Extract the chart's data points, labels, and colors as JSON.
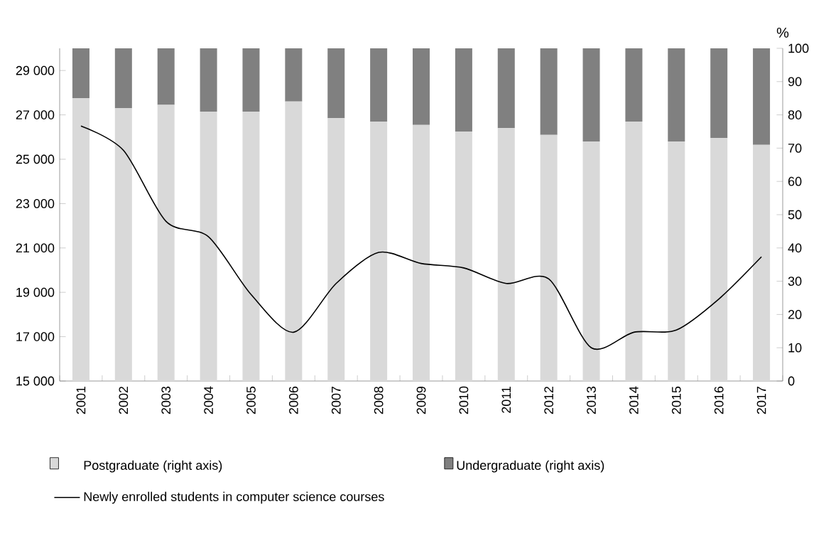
{
  "chart_data": {
    "type": "bar",
    "stacked": true,
    "legend": "bottom",
    "categories": [
      "2001",
      "2002",
      "2003",
      "2004",
      "2005",
      "2006",
      "2007",
      "2008",
      "2009",
      "2010",
      "2011",
      "2012",
      "2013",
      "2014",
      "2015",
      "2016",
      "2017"
    ],
    "series": [
      {
        "name": "Postgraduate (right axis)",
        "axis": "y2",
        "color": "#d9d9d9",
        "values": [
          85,
          82,
          83,
          81,
          81,
          84,
          79,
          78,
          77,
          75,
          76,
          74,
          72,
          78,
          72,
          73,
          71
        ]
      },
      {
        "name": "Undergraduate (right axis)",
        "axis": "y2",
        "color": "#808080",
        "values": [
          15,
          18,
          17,
          19,
          19,
          16,
          21,
          22,
          23,
          25,
          24,
          26,
          28,
          22,
          28,
          27,
          29
        ]
      },
      {
        "name": "Newly enrolled students in computer science courses",
        "type": "line",
        "color": "#000000",
        "values": [
          26500,
          25400,
          22200,
          21500,
          18900,
          17200,
          19400,
          20800,
          20300,
          20100,
          19400,
          19600,
          16500,
          17200,
          17300,
          18700,
          20600
        ]
      }
    ],
    "ylim": [
      15000,
      30000
    ],
    "yticks": [
      {
        "value": 15000,
        "label": "15 000"
      },
      {
        "value": 17000,
        "label": "17 000"
      },
      {
        "value": 19000,
        "label": "19 000"
      },
      {
        "value": 21000,
        "label": "21 000"
      },
      {
        "value": 23000,
        "label": "23 000"
      },
      {
        "value": 25000,
        "label": "25 000"
      },
      {
        "value": 27000,
        "label": "27 000"
      },
      {
        "value": 29000,
        "label": "29 000"
      }
    ],
    "y2lim": [
      0,
      100
    ],
    "y2ticks": [
      0,
      10,
      20,
      30,
      40,
      50,
      60,
      70,
      80,
      90,
      100
    ],
    "y2label": "%"
  }
}
